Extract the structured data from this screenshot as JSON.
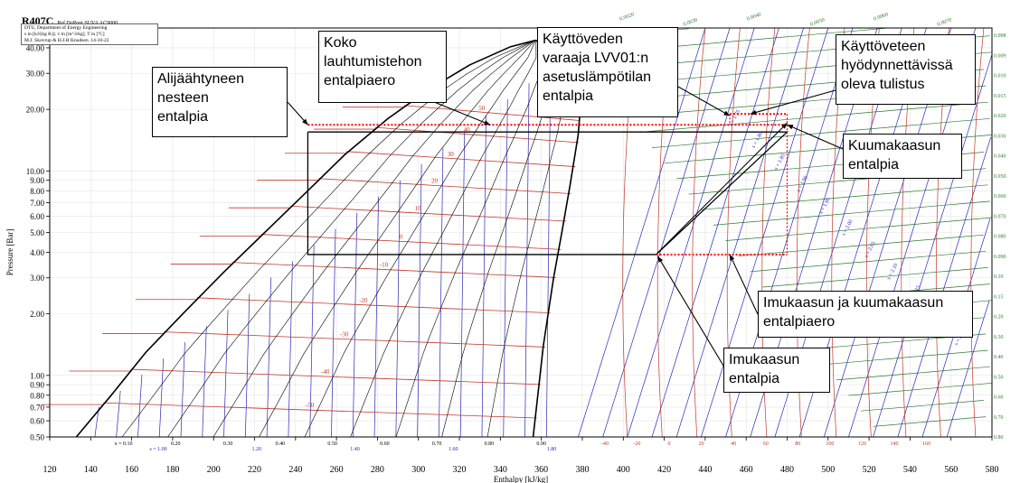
{
  "header": {
    "title": "R407C",
    "source": "Ref DuPont SUVA AC9000",
    "info": "DTU, Department of Energy Engineering\ns in [kJ/(kg K)]. v in [m^3/kg]. T in [ºC]\nM.J. Skovrup & H.J.H Knudsen. 14-10-22"
  },
  "chart_data": {
    "type": "line",
    "title": "R407C",
    "xlabel": "Enthalpy [kJ/kg]",
    "ylabel": "Pressure [Bar]",
    "xlim": [
      120,
      580
    ],
    "ylim": [
      0.5,
      50
    ],
    "y_scale": "log",
    "x_ticks": [
      120,
      140,
      160,
      180,
      200,
      220,
      240,
      260,
      280,
      300,
      320,
      340,
      360,
      380,
      400,
      420,
      440,
      460,
      480,
      500,
      520,
      540,
      560,
      580
    ],
    "y_ticks": [
      {
        "v": 50,
        "label": "50.00"
      },
      {
        "v": 40,
        "label": "40.00"
      },
      {
        "v": 30,
        "label": "30.00"
      },
      {
        "v": 20,
        "label": "20.00"
      },
      {
        "v": 10,
        "label": "10.00"
      },
      {
        "v": 9,
        "label": "9.00"
      },
      {
        "v": 8,
        "label": "8.00"
      },
      {
        "v": 7,
        "label": "7.00"
      },
      {
        "v": 6,
        "label": "6.00"
      },
      {
        "v": 5,
        "label": "5.00"
      },
      {
        "v": 4,
        "label": "4.00"
      },
      {
        "v": 3,
        "label": "3.00"
      },
      {
        "v": 2,
        "label": "2.00"
      },
      {
        "v": 1,
        "label": "1.00"
      },
      {
        "v": 0.9,
        "label": "0.90"
      },
      {
        "v": 0.8,
        "label": "0.80"
      },
      {
        "v": 0.7,
        "label": "0.70"
      },
      {
        "v": 0.6,
        "label": "0.60"
      },
      {
        "v": 0.5,
        "label": "0.50"
      }
    ],
    "saturated_liquid": [
      [
        133,
        0.5
      ],
      [
        150,
        0.8
      ],
      [
        167,
        1.3
      ],
      [
        185,
        2.0
      ],
      [
        205,
        3.2
      ],
      [
        225,
        5.0
      ],
      [
        246,
        8.0
      ],
      [
        264,
        12.0
      ],
      [
        285,
        18.0
      ],
      [
        305,
        25.0
      ],
      [
        325,
        33.0
      ],
      [
        345,
        40.5
      ],
      [
        357,
        43.5
      ]
    ],
    "saturated_vapor": [
      [
        357,
        43.5
      ],
      [
        367,
        41.0
      ],
      [
        375,
        35.0
      ],
      [
        378,
        28.0
      ],
      [
        379,
        20.0
      ],
      [
        378,
        15.0
      ],
      [
        374,
        8.5
      ],
      [
        370,
        5.0
      ],
      [
        366,
        3.0
      ],
      [
        361,
        1.4
      ],
      [
        356,
        0.5
      ]
    ],
    "cycle": {
      "points": [
        [
          246,
          15.5
        ],
        [
          416,
          3.9
        ],
        [
          480,
          15.5
        ]
      ],
      "line_color": "#000000",
      "marker_color": "#ff0000"
    },
    "isotherms_two_phase": [
      {
        "label": "-50",
        "p": 0.72
      },
      {
        "label": "-40",
        "p": 1.05
      },
      {
        "label": "-30",
        "p": 1.6
      },
      {
        "label": "-20",
        "p": 2.35
      },
      {
        "label": "-10",
        "p": 3.5
      },
      {
        "label": "0",
        "p": 4.8
      },
      {
        "label": "10",
        "p": 6.6
      },
      {
        "label": "20",
        "p": 9.0
      },
      {
        "label": "30",
        "p": 12.2
      },
      {
        "label": "40",
        "p": 16.0
      },
      {
        "label": "50",
        "p": 20.5
      }
    ],
    "quality_labels": [
      "x = 0.10",
      "0.20",
      "0.30",
      "0.40",
      "0.50",
      "0.60",
      "0.70",
      "0.80",
      "0.90"
    ],
    "entropy_bottom_labels": [
      "s = 1.00",
      "1.20",
      "1.40",
      "1.60",
      "1.80"
    ],
    "temperature_bottom_labels": [
      "-40",
      "-20",
      "0",
      "20",
      "40",
      "60",
      "80",
      "100",
      "120",
      "140",
      "160"
    ],
    "volume_right_labels": [
      "0.008",
      "0.009",
      "0.010",
      "0.015",
      "0.020",
      "0.030",
      "0.040",
      "0.050",
      "0.060",
      "0.070",
      "0.080",
      "0.090",
      "0.10",
      "0.15",
      "0.20",
      "0.30",
      "0.40",
      "0.50",
      "0.60",
      "0.70",
      "0.80"
    ],
    "top_volume_labels": [
      "0.0020",
      "0.0030",
      "0.0040",
      "0.0050",
      "0.0060",
      "0.0070"
    ],
    "entropy_labels": [
      "s = 1.75",
      "s = 1.80",
      "s = 1.85",
      "s = 1.90",
      "s = 1.95",
      "s = 2.00",
      "s = 2.05",
      "s = 2.10",
      "s = 2.15",
      "s = 2.20",
      "s = 2.25"
    ],
    "colors": {
      "isotherm": "#c0392b",
      "isentrope": "#2a2ab8",
      "isochore": "#2e7d32",
      "saturation": "#000000",
      "quality": "#000000",
      "cycle_marker": "#ff0000"
    }
  },
  "annotations": [
    {
      "id": "alijaahtyneen",
      "text": "Alijäähtyneen\nnesteen\nentalpia"
    },
    {
      "id": "koko",
      "text": "Koko\nlauhtumistehon\nentalpiaero"
    },
    {
      "id": "kayttoveden",
      "text": "Käyttöveden\nvaraaja LVV01:n\nasetuslämpötilan\nentalpia"
    },
    {
      "id": "kayttoveteen",
      "text": "Käyttöveteen\nhyödynnettävissä\noleva tulistus"
    },
    {
      "id": "kuumakaasun",
      "text": "Kuumakaasun\nentalpia"
    },
    {
      "id": "imukaasun-ero",
      "text": "Imukaasun ja kuumakaasun\nentalpiaero"
    },
    {
      "id": "imukaasun",
      "text": "Imukaasun\nentalpia"
    }
  ]
}
